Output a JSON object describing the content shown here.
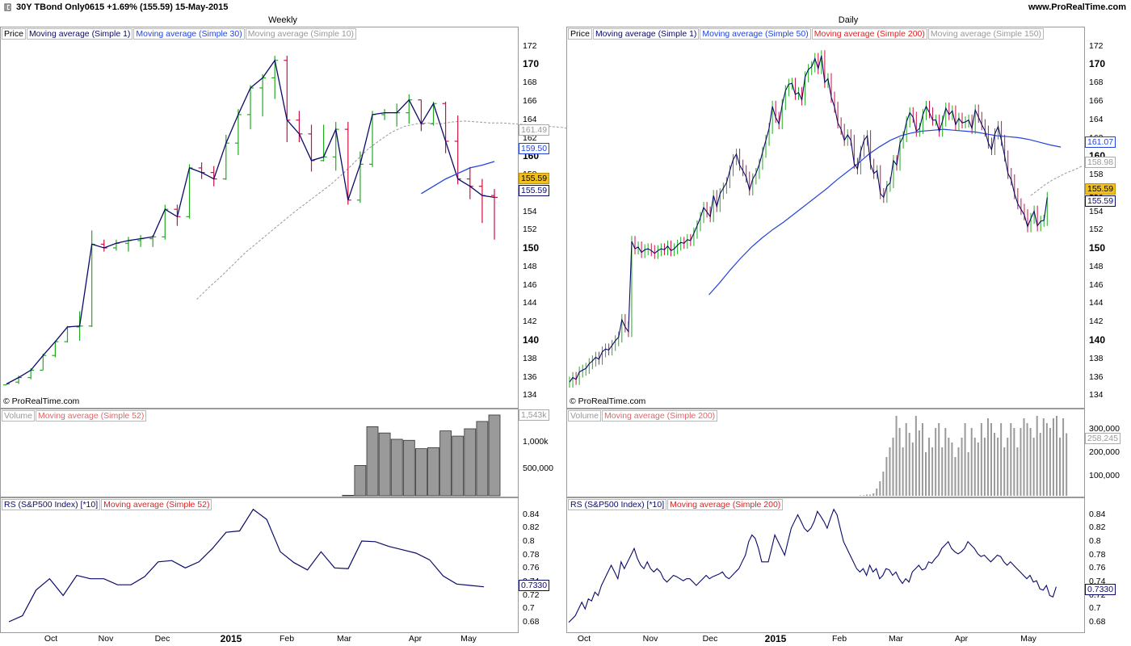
{
  "header": {
    "title": "30Y TBond Only0615   +1.69% (155.59)   15-May-2015",
    "site": "www.ProRealTime.com"
  },
  "colors": {
    "up": "#22aa22",
    "down": "#cc1144",
    "price_line": "#0a0a6a",
    "ma_blue": "#2244dd",
    "ma_gray": "#999999",
    "ma_red": "#dd2222",
    "last_tag_bg": "#f0c020"
  },
  "weekly": {
    "title": "Weekly",
    "copyright": "© ProRealTime.com",
    "legend": [
      "Price",
      "Moving average (Simple 1)",
      "Moving average (Simple 30)",
      "Moving average (Simple 10)"
    ],
    "price_ticks": [
      "172",
      "170",
      "168",
      "166",
      "164",
      "162",
      "160",
      "158",
      "156",
      "154",
      "152",
      "150",
      "148",
      "146",
      "144",
      "142",
      "140",
      "138",
      "136",
      "134"
    ],
    "tags": {
      "ma10": "161.49",
      "ma30": "159.50",
      "last": "155.59",
      "close": "155.59"
    },
    "volume_legend": [
      "Volume",
      "Moving average (Simple 52)"
    ],
    "volume_ticks": [
      "1,000k",
      "500,000"
    ],
    "volume_tag": "1,543k",
    "rs_legend": [
      "RS (S&P500 Index) [*10]",
      "Moving average (Simple 52)"
    ],
    "rs_ticks": [
      "0.84",
      "0.82",
      "0.8",
      "0.78",
      "0.76",
      "0.74",
      "0.72",
      "0.7",
      "0.68"
    ],
    "rs_tag": "0.7330",
    "months": [
      "Oct",
      "Nov",
      "Dec",
      "2015",
      "Feb",
      "Mar",
      "Apr",
      "May"
    ]
  },
  "daily": {
    "title": "Daily",
    "copyright": "© ProRealTime.com",
    "legend": [
      "Price",
      "Moving average (Simple 1)",
      "Moving average (Simple 50)",
      "Moving average (Simple 200)",
      "Moving average (Simple 150)"
    ],
    "price_ticks": [
      "172",
      "170",
      "168",
      "166",
      "164",
      "162",
      "160",
      "158",
      "156",
      "154",
      "152",
      "150",
      "148",
      "146",
      "144",
      "142",
      "140",
      "138",
      "136",
      "134"
    ],
    "tags": {
      "ma50": "161.07",
      "ma150": "158.98",
      "last": "155.59",
      "close": "155.59"
    },
    "volume_legend": [
      "Volume",
      "Moving average (Simple 200)"
    ],
    "volume_ticks": [
      "300,000",
      "200,000",
      "100,000"
    ],
    "volume_tag": "258,245",
    "rs_legend": [
      "RS (S&P500 Index) [*10]",
      "Moving average (Simple 200)"
    ],
    "rs_ticks": [
      "0.84",
      "0.82",
      "0.8",
      "0.78",
      "0.76",
      "0.74",
      "0.72",
      "0.7",
      "0.68"
    ],
    "rs_tag": "0.7330",
    "months": [
      "Oct",
      "Nov",
      "Dec",
      "2015",
      "Feb",
      "Mar",
      "Apr",
      "May"
    ]
  },
  "chart_data": [
    {
      "type": "ohlc",
      "title": "Weekly",
      "ylim": [
        133.5,
        173.2
      ],
      "bars": [
        [
          135.2,
          135.3,
          135.2,
          135.3
        ],
        [
          135.5,
          136.2,
          135.3,
          136.0
        ],
        [
          136.0,
          137.0,
          135.8,
          136.8
        ],
        [
          136.8,
          138.6,
          136.8,
          138.4
        ],
        [
          138.4,
          140.0,
          138.2,
          139.9
        ],
        [
          139.9,
          141.6,
          139.8,
          141.5
        ],
        [
          141.5,
          143.2,
          140.0,
          141.6
        ],
        [
          141.6,
          152.0,
          141.5,
          150.5
        ],
        [
          150.5,
          151.0,
          149.7,
          150.1
        ],
        [
          150.1,
          151.0,
          149.8,
          150.6
        ],
        [
          150.6,
          151.3,
          149.7,
          150.9
        ],
        [
          150.9,
          151.5,
          150.2,
          151.1
        ],
        [
          151.1,
          151.5,
          150.2,
          151.3
        ],
        [
          151.3,
          154.8,
          151.0,
          154.3
        ],
        [
          154.3,
          154.8,
          152.5,
          153.5
        ],
        [
          153.5,
          159.2,
          153.3,
          158.8
        ],
        [
          158.8,
          159.4,
          157.6,
          158.3
        ],
        [
          158.3,
          159.0,
          156.8,
          157.6
        ],
        [
          157.6,
          162.4,
          157.5,
          161.5
        ],
        [
          161.5,
          165.2,
          160.2,
          164.6
        ],
        [
          164.6,
          167.8,
          163.0,
          167.5
        ],
        [
          167.5,
          169.0,
          164.4,
          168.6
        ],
        [
          168.6,
          171.0,
          166.3,
          170.5
        ],
        [
          170.5,
          171.0,
          161.6,
          164.0
        ],
        [
          164.0,
          165.0,
          161.6,
          162.5
        ],
        [
          162.5,
          163.5,
          158.4,
          159.6
        ],
        [
          159.6,
          163.5,
          159.5,
          160.0
        ],
        [
          160.0,
          163.8,
          158.5,
          163.0
        ],
        [
          163.0,
          163.8,
          154.8,
          155.3
        ],
        [
          155.3,
          160.6,
          155.0,
          159.2
        ],
        [
          159.2,
          165.0,
          158.9,
          164.6
        ],
        [
          164.6,
          165.2,
          164.0,
          164.8
        ],
        [
          164.8,
          165.8,
          163.3,
          164.8
        ],
        [
          164.8,
          166.8,
          163.6,
          166.2
        ],
        [
          166.2,
          166.2,
          162.8,
          163.6
        ],
        [
          163.6,
          166.0,
          163.4,
          165.8
        ],
        [
          165.8,
          166.0,
          160.4,
          161.7
        ],
        [
          161.7,
          164.5,
          157.0,
          157.6
        ],
        [
          157.6,
          158.9,
          155.4,
          156.8
        ],
        [
          156.8,
          157.6,
          152.8,
          155.8
        ],
        [
          155.8,
          156.5,
          151.0,
          155.6
        ]
      ],
      "ma10": [
        144.5,
        145.8,
        147.0,
        148.3,
        149.6,
        150.7,
        151.8,
        152.9,
        154.0,
        155.0,
        156.0,
        157.0,
        158.2,
        159.5,
        160.8,
        161.8,
        162.7,
        163.3,
        163.6,
        163.7,
        163.6,
        163.8,
        163.9,
        163.8,
        163.7,
        163.7,
        163.6,
        163.5,
        163.4,
        163.3,
        163.2,
        162.9,
        162.6,
        162.3,
        162.1,
        161.5
      ],
      "ma10_start_bar": 5,
      "ma30": [
        156.0,
        156.8,
        157.6,
        158.2,
        158.8,
        159.1,
        159.5
      ],
      "ma30_start_bar": 34,
      "volume": [
        10000,
        580000,
        1320000,
        1200000,
        1080000,
        1060000,
        900000,
        920000,
        1240000,
        1140000,
        1280000,
        1420000,
        1543000
      ],
      "volume_start_bar": 28,
      "rs": [
        0.681,
        0.69,
        0.728,
        0.745,
        0.72,
        0.75,
        0.745,
        0.745,
        0.736,
        0.736,
        0.748,
        0.77,
        0.772,
        0.761,
        0.77,
        0.79,
        0.814,
        0.816,
        0.848,
        0.833,
        0.785,
        0.769,
        0.758,
        0.785,
        0.761,
        0.76,
        0.801,
        0.8,
        0.793,
        0.788,
        0.783,
        0.773,
        0.749,
        0.737,
        0.735,
        0.733
      ],
      "rs_ylim": [
        0.675,
        0.855
      ]
    },
    {
      "type": "ohlc",
      "title": "Daily",
      "ylim": [
        133.5,
        173.2
      ],
      "closes": [
        135.5,
        136.0,
        135.8,
        136.6,
        136.8,
        137.0,
        137.5,
        137.8,
        138.2,
        138.0,
        138.8,
        139.1,
        139.0,
        139.5,
        140.0,
        140.4,
        142.3,
        141.5,
        141.0,
        150.8,
        150.0,
        150.2,
        149.6,
        149.9,
        150.0,
        149.8,
        149.5,
        149.8,
        150.0,
        149.9,
        150.3,
        149.8,
        150.0,
        150.4,
        150.7,
        150.6,
        151.0,
        150.9,
        151.7,
        152.5,
        153.4,
        154.5,
        154.0,
        153.5,
        155.8,
        154.6,
        156.0,
        156.6,
        157.2,
        158.5,
        159.7,
        160.3,
        159.1,
        158.5,
        157.8,
        156.4,
        157.6,
        158.2,
        159.2,
        160.5,
        161.8,
        163.1,
        165.5,
        164.3,
        163.6,
        165.7,
        167.2,
        167.9,
        168.0,
        166.8,
        167.0,
        166.2,
        168.7,
        169.5,
        169.8,
        170.7,
        169.6,
        171.0,
        168.1,
        168.5,
        166.5,
        165.4,
        163.7,
        163.0,
        161.8,
        162.4,
        161.8,
        159.3,
        158.7,
        160.6,
        161.8,
        162.3,
        159.2,
        158.2,
        158.5,
        156.0,
        155.6,
        156.8,
        157.2,
        159.6,
        159.1,
        161.5,
        162.2,
        163.8,
        164.8,
        164.3,
        162.8,
        163.1,
        164.6,
        165.5,
        164.8,
        164.0,
        164.0,
        162.8,
        163.9,
        165.3,
        164.6,
        165.0,
        163.5,
        164.2,
        163.7,
        163.8,
        164.0,
        163.1,
        165.1,
        164.3,
        163.5,
        162.8,
        161.5,
        160.8,
        162.5,
        163.3,
        161.8,
        160.1,
        158.2,
        157.5,
        156.0,
        154.9,
        154.3,
        153.7,
        152.4,
        153.3,
        154.1,
        152.5,
        153.0,
        153.1,
        155.59
      ],
      "ma50": [
        145.0,
        146.3,
        147.7,
        149.0,
        150.2,
        151.2,
        152.1,
        152.9,
        153.8,
        154.7,
        155.6,
        156.5,
        157.5,
        158.4,
        159.3,
        160.3,
        161.1,
        161.8,
        162.3,
        162.6,
        162.8,
        162.9,
        163.0,
        162.9,
        162.8,
        162.7,
        162.5,
        162.3,
        162.2,
        162.1,
        161.9,
        161.6,
        161.3,
        161.07
      ],
      "ma50_start_index": 50,
      "ma150": [
        155.8,
        156.4,
        157.0,
        157.5,
        157.9,
        158.3,
        158.6,
        158.98
      ],
      "ma150_start_index": 141,
      "volume": [
        2000,
        2000,
        5000,
        5000,
        10000,
        30000,
        60000,
        100000,
        160000,
        200000,
        240000,
        330000,
        280000,
        200000,
        300000,
        260000,
        220000,
        330000,
        270000,
        300000,
        180000,
        240000,
        200000,
        280000,
        300000,
        200000,
        280000,
        240000,
        220000,
        160000,
        200000,
        240000,
        300000,
        180000,
        280000,
        240000,
        220000,
        300000,
        240000,
        320000,
        300000,
        260000,
        240000,
        300000,
        200000,
        240000,
        300000,
        280000,
        200000,
        280000,
        320000,
        300000,
        280000,
        240000,
        330000,
        260000,
        320000,
        300000,
        280000,
        320000,
        330000,
        240000,
        320000,
        258245
      ],
      "volume_start_index": 100,
      "rs": [
        0.68,
        0.685,
        0.69,
        0.7,
        0.71,
        0.7,
        0.715,
        0.712,
        0.725,
        0.72,
        0.735,
        0.745,
        0.755,
        0.765,
        0.755,
        0.745,
        0.77,
        0.76,
        0.77,
        0.78,
        0.79,
        0.775,
        0.765,
        0.76,
        0.77,
        0.76,
        0.755,
        0.76,
        0.755,
        0.745,
        0.74,
        0.745,
        0.75,
        0.748,
        0.745,
        0.742,
        0.745,
        0.745,
        0.74,
        0.735,
        0.74,
        0.745,
        0.75,
        0.745,
        0.748,
        0.75,
        0.752,
        0.755,
        0.748,
        0.745,
        0.75,
        0.755,
        0.76,
        0.77,
        0.78,
        0.8,
        0.81,
        0.805,
        0.79,
        0.77,
        0.77,
        0.77,
        0.79,
        0.81,
        0.8,
        0.79,
        0.78,
        0.8,
        0.82,
        0.83,
        0.84,
        0.83,
        0.82,
        0.815,
        0.82,
        0.83,
        0.845,
        0.838,
        0.83,
        0.82,
        0.835,
        0.848,
        0.84,
        0.82,
        0.8,
        0.79,
        0.78,
        0.77,
        0.76,
        0.755,
        0.76,
        0.75,
        0.765,
        0.755,
        0.76,
        0.745,
        0.75,
        0.76,
        0.758,
        0.75,
        0.755,
        0.745,
        0.738,
        0.745,
        0.74,
        0.755,
        0.76,
        0.765,
        0.758,
        0.76,
        0.77,
        0.768,
        0.775,
        0.78,
        0.79,
        0.795,
        0.8,
        0.79,
        0.785,
        0.782,
        0.785,
        0.79,
        0.8,
        0.795,
        0.79,
        0.782,
        0.778,
        0.78,
        0.775,
        0.77,
        0.775,
        0.78,
        0.778,
        0.77,
        0.765,
        0.77,
        0.765,
        0.76,
        0.755,
        0.75,
        0.745,
        0.75,
        0.74,
        0.742,
        0.73,
        0.728,
        0.735,
        0.72,
        0.718,
        0.733
      ],
      "rs_ylim": [
        0.675,
        0.855
      ]
    }
  ]
}
